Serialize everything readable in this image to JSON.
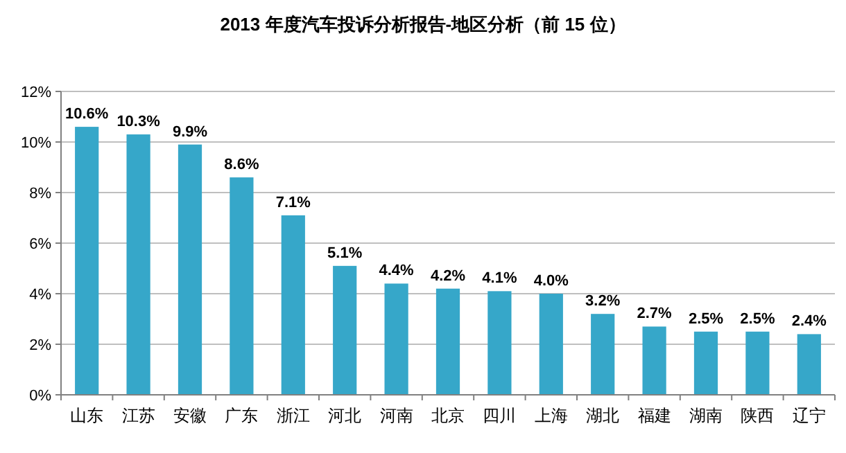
{
  "chart_data": {
    "type": "bar",
    "title": "2013 年度汽车投诉分析报告-地区分析（前 15 位）",
    "categories": [
      "山东",
      "江苏",
      "安徽",
      "广东",
      "浙江",
      "河北",
      "河南",
      "北京",
      "四川",
      "上海",
      "湖北",
      "福建",
      "湖南",
      "陕西",
      "辽宁"
    ],
    "values": [
      10.6,
      10.3,
      9.9,
      8.6,
      7.1,
      5.1,
      4.4,
      4.2,
      4.1,
      4.0,
      3.2,
      2.7,
      2.5,
      2.5,
      2.4
    ],
    "value_labels": [
      "10.6%",
      "10.3%",
      "9.9%",
      "8.6%",
      "7.1%",
      "5.1%",
      "4.4%",
      "4.2%",
      "4.1%",
      "4.0%",
      "3.2%",
      "2.7%",
      "2.5%",
      "2.5%",
      "2.4%"
    ],
    "color": "#36a7c9",
    "ylim": [
      0,
      12
    ],
    "yticks": [
      {
        "value": 0,
        "label": "0%"
      },
      {
        "value": 2,
        "label": "2%"
      },
      {
        "value": 4,
        "label": "4%"
      },
      {
        "value": 6,
        "label": "6%"
      },
      {
        "value": 8,
        "label": "8%"
      },
      {
        "value": 10,
        "label": "10%"
      },
      {
        "value": 12,
        "label": "12%"
      }
    ],
    "grid": "y"
  }
}
